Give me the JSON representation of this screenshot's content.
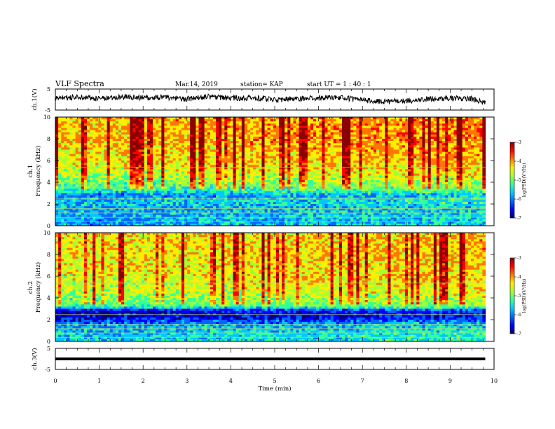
{
  "header": {
    "title": "VLF Spectra",
    "date": "Mar.14, 2019",
    "station": "station= KAP",
    "start": "start  UT =   1 : 40 : 1"
  },
  "colors": {
    "colormap": [
      "#00007f",
      "#0000ff",
      "#0066ff",
      "#00c8ff",
      "#33ff99",
      "#a6ff33",
      "#ffee00",
      "#ff7700",
      "#ff0000",
      "#8b0000"
    ],
    "axis": "#000000",
    "trace": "#000000"
  },
  "chart_data": [
    {
      "type": "line",
      "panel": "ch1-waveform",
      "ylabel": "ch.1(V)",
      "ylim": [
        -5,
        5
      ],
      "ytick_labels": [
        "5",
        "-5"
      ],
      "x_range_min": [
        0,
        9.8
      ],
      "x": [
        0,
        0.5,
        1,
        1.5,
        2,
        2.5,
        3,
        3.5,
        4,
        4.5,
        5,
        5.5,
        6,
        6.5,
        7,
        7.5,
        8,
        8.5,
        9,
        9.5,
        9.8
      ],
      "y": [
        0.5,
        1.2,
        0.3,
        1.5,
        0.8,
        1.0,
        0.2,
        1.4,
        0.6,
        0.9,
        -0.2,
        0.4,
        0.8,
        0.9,
        -0.3,
        -1.0,
        -0.6,
        0.3,
        0.7,
        0.4,
        -1.4
      ]
    },
    {
      "type": "heatmap",
      "panel": "ch1-spectrogram",
      "ylabel": "ch.1",
      "ylabel2": "Frequency (kHz)",
      "ylim": [
        0,
        10
      ],
      "ytick_labels": [
        "0",
        "2",
        "4",
        "6",
        "8",
        "10"
      ],
      "colorbar": {
        "label": "log(PSD)(V²/Hz)",
        "range": [
          -7,
          -3
        ],
        "ticks": [
          "-3",
          "-4",
          "-5",
          "-6",
          "-7"
        ]
      },
      "frequency_profile_kHz": [
        [
          0.5,
          -5.8
        ],
        [
          1.5,
          -5.8
        ],
        [
          2.4,
          -5.6
        ],
        [
          2.8,
          -6.0
        ],
        [
          3.2,
          -5.4
        ],
        [
          4.5,
          -4.8
        ],
        [
          6,
          -4.5
        ],
        [
          8,
          -4.3
        ],
        [
          10,
          -4.3
        ]
      ]
    },
    {
      "type": "heatmap",
      "panel": "ch2-spectrogram",
      "ylabel": "ch.2",
      "ylabel2": "Frequency (kHz)",
      "ylim": [
        0,
        10
      ],
      "ytick_labels": [
        "0",
        "2",
        "4",
        "6",
        "8",
        "10"
      ],
      "colorbar": {
        "label": "log(PSD)(V²/Hz)",
        "range": [
          -7,
          -3
        ],
        "ticks": [
          "-3",
          "-4",
          "-5",
          "-6",
          "-7"
        ]
      },
      "frequency_profile_kHz": [
        [
          0.5,
          -5.6
        ],
        [
          1.5,
          -5.8
        ],
        [
          2.2,
          -6.6
        ],
        [
          2.8,
          -6.6
        ],
        [
          3.2,
          -5.2
        ],
        [
          4.5,
          -4.8
        ],
        [
          6,
          -4.6
        ],
        [
          8,
          -4.5
        ],
        [
          10,
          -4.5
        ]
      ]
    },
    {
      "type": "line",
      "panel": "ch3-waveform",
      "ylabel": "ch.3(V)",
      "xlabel": "Time (min)",
      "ylim": [
        -5,
        5
      ],
      "ytick_labels": [
        "5",
        "-5"
      ],
      "xlim": [
        0,
        10
      ],
      "xtick_labels": [
        "0",
        "1",
        "2",
        "3",
        "4",
        "5",
        "6",
        "7",
        "8",
        "9",
        "10"
      ],
      "x": [
        0,
        9.8
      ],
      "y": [
        0,
        0
      ]
    }
  ]
}
